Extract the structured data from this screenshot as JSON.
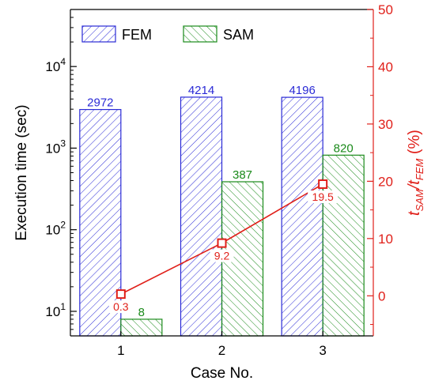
{
  "chart_data": {
    "type": "bar",
    "categories": [
      "1",
      "2",
      "3"
    ],
    "xlabel": "Case No.",
    "ylabel": "Execution time (sec)",
    "y_scale": "log",
    "ylim": [
      5,
      50000
    ],
    "y_ticks": [
      {
        "value": 10,
        "base": "10",
        "exp": "1"
      },
      {
        "value": 100,
        "base": "10",
        "exp": "2"
      },
      {
        "value": 1000,
        "base": "10",
        "exp": "3"
      },
      {
        "value": 10000,
        "base": "10",
        "exp": "4"
      }
    ],
    "series": [
      {
        "name": "FEM",
        "values": [
          2972,
          4214,
          4196
        ],
        "labels": [
          "2972",
          "4214",
          "4196"
        ],
        "color": "#2a2ad6",
        "hatch": "diagonal"
      },
      {
        "name": "SAM",
        "values": [
          8,
          387,
          820
        ],
        "labels": [
          "8",
          "387",
          "820"
        ],
        "color": "#1a8a1a",
        "hatch": "diagonal-reverse"
      }
    ],
    "secondary_axis": {
      "ylabel_main": "t",
      "ylabel_sub1": "SAM",
      "ylabel_sep": "/t",
      "ylabel_sub2": "FEM",
      "ylabel_unit": " (%)",
      "ylim": [
        -7,
        50
      ],
      "ticks": [
        0,
        10,
        20,
        30,
        40,
        50
      ],
      "color": "#e0201a",
      "series": {
        "name": "tSAM/tFEM",
        "type": "line",
        "values": [
          0.3,
          9.2,
          19.5
        ],
        "labels": [
          "0.3",
          "9.2",
          "19.5"
        ]
      }
    },
    "legend": {
      "position": "top-left",
      "entries": [
        "FEM",
        "SAM"
      ]
    },
    "grid": false
  }
}
